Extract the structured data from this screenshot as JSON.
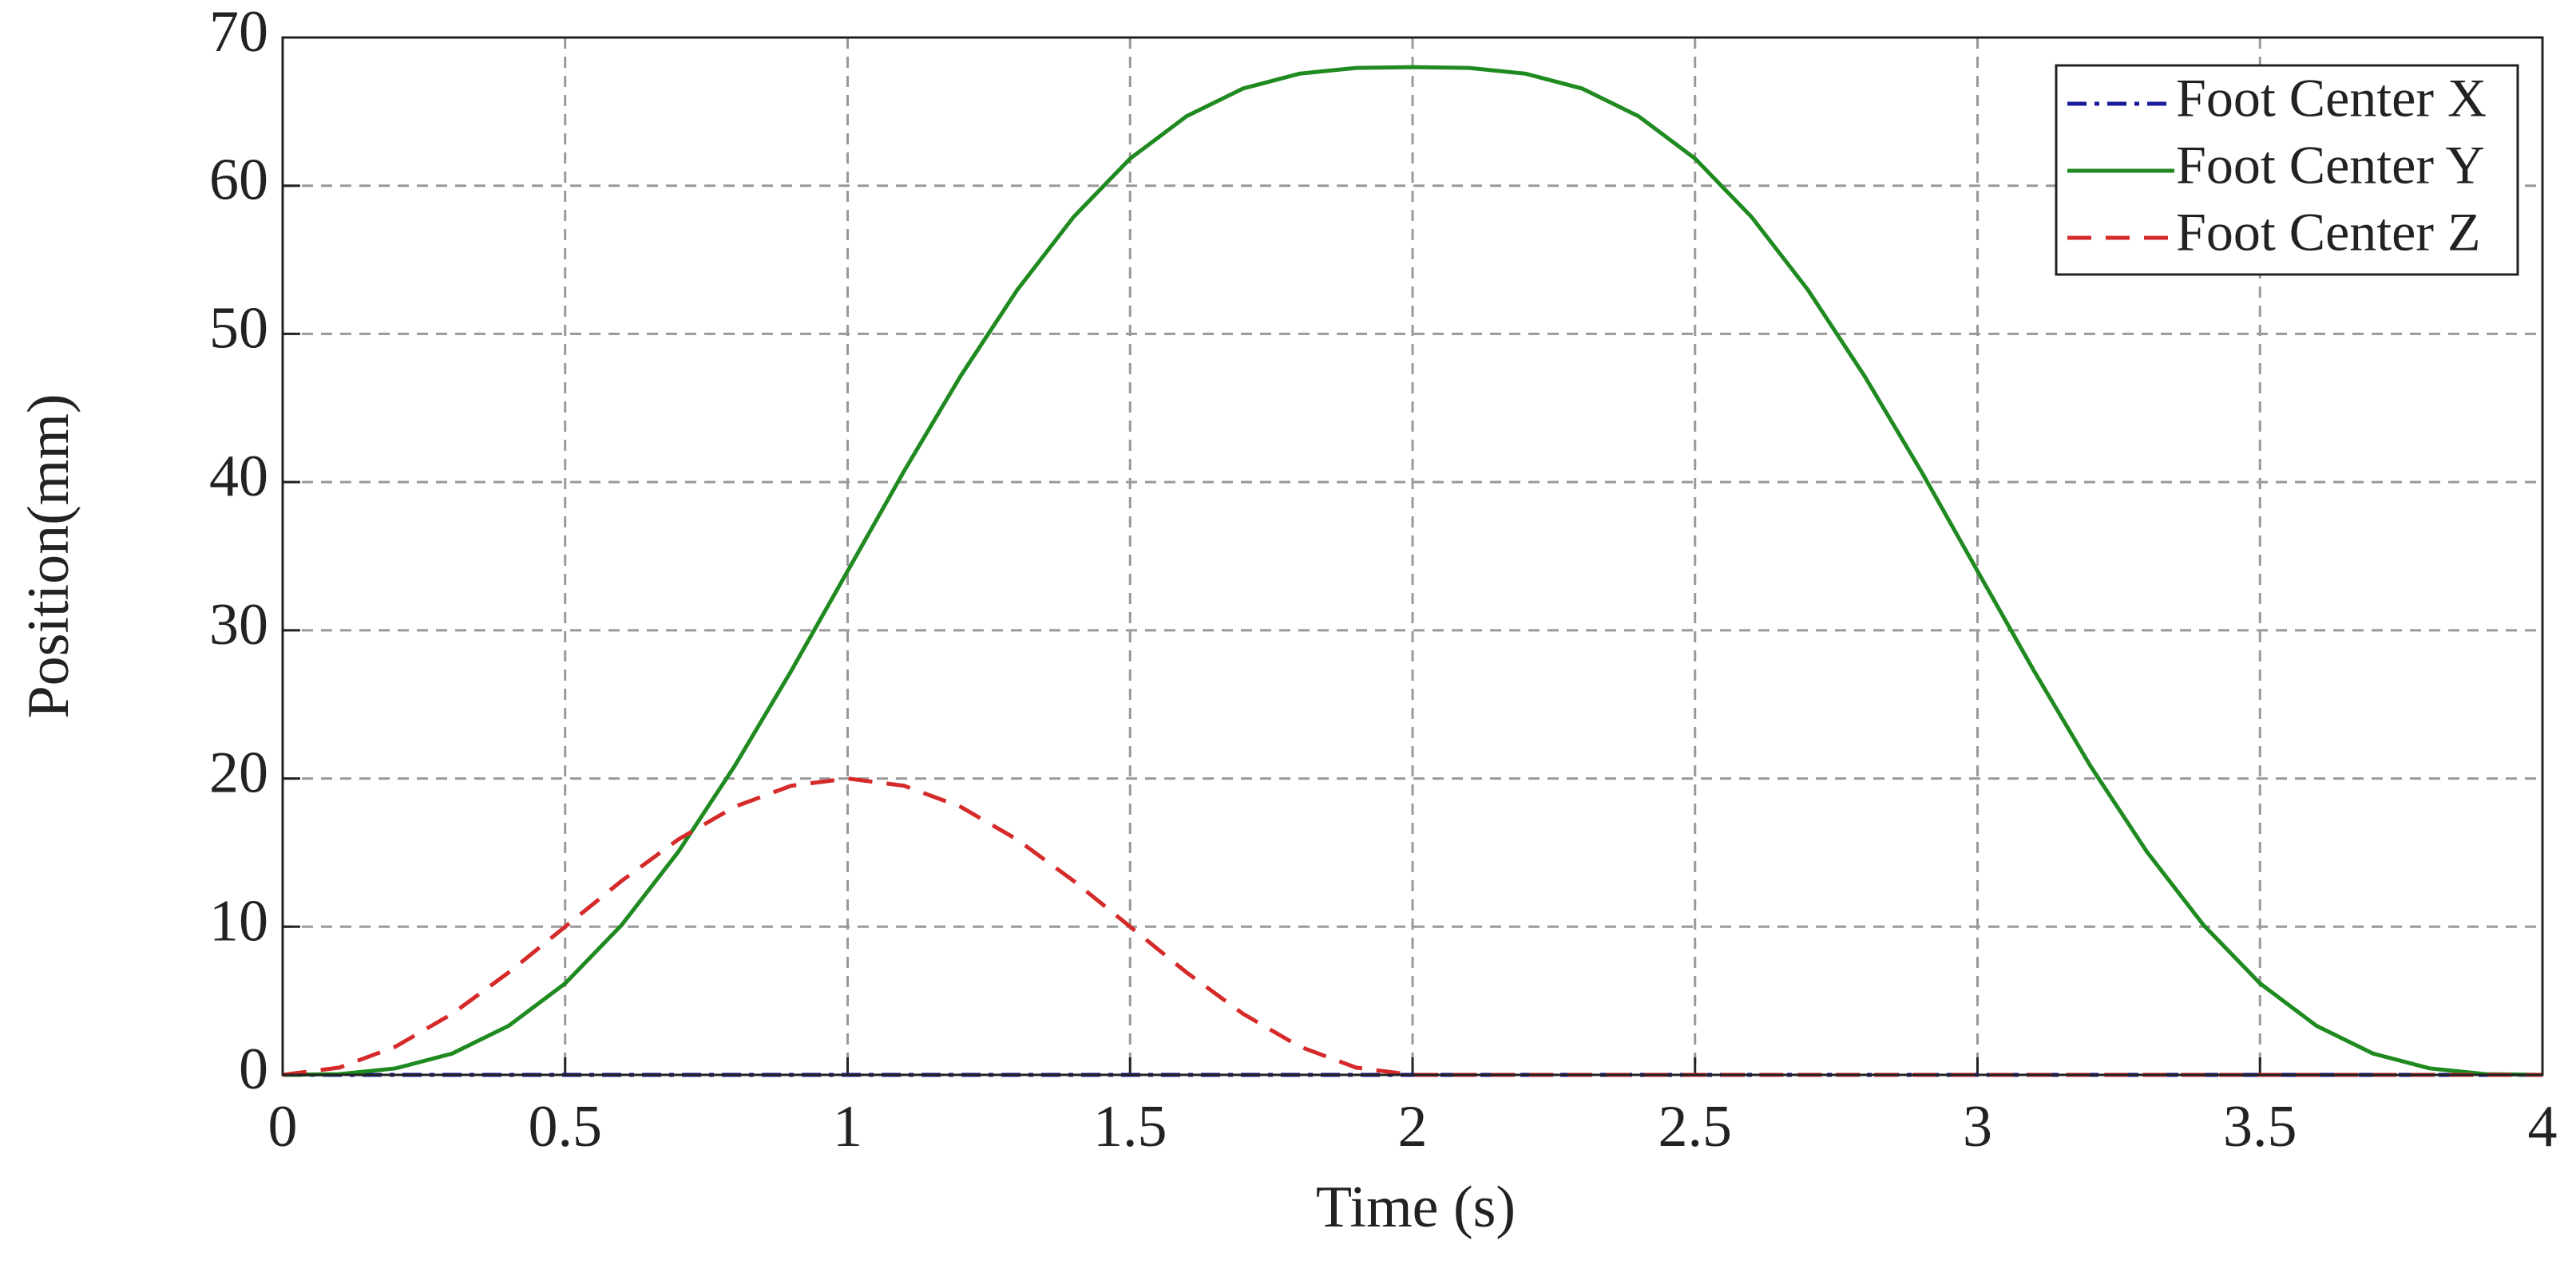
{
  "chart_data": {
    "type": "line",
    "xlabel": "Time (s)",
    "ylabel": "Position(mm)",
    "x": [
      0,
      0.1,
      0.2,
      0.3,
      0.4,
      0.5,
      0.6,
      0.7,
      0.8,
      0.9,
      1,
      1.1,
      1.2,
      1.3,
      1.4,
      1.5,
      1.6,
      1.7,
      1.8,
      1.9,
      2,
      2.1,
      2.2,
      2.3,
      2.4,
      2.5,
      2.6,
      2.7,
      2.8,
      2.9,
      3,
      3.1,
      3.2,
      3.3,
      3.4,
      3.5,
      3.6,
      3.7,
      3.8,
      3.9,
      4
    ],
    "series": [
      {
        "name": "Foot Center X",
        "color": "#1a1a9c",
        "dash": "dashdot",
        "values": [
          0,
          0,
          0,
          0,
          0,
          0,
          0,
          0,
          0,
          0,
          0,
          0,
          0,
          0,
          0,
          0,
          0,
          0,
          0,
          0,
          0,
          0,
          0,
          0,
          0,
          0,
          0,
          0,
          0,
          0,
          0,
          0,
          0,
          0,
          0,
          0,
          0,
          0,
          0,
          0,
          0
        ]
      },
      {
        "name": "Foot Center Y",
        "color": "#1f8a1f",
        "dash": "solid",
        "values": [
          0,
          0.05,
          0.44,
          1.44,
          3.31,
          6.17,
          10.11,
          15.04,
          20.84,
          27.25,
          34,
          40.75,
          47.16,
          52.96,
          57.89,
          61.83,
          64.69,
          66.56,
          67.56,
          67.95,
          68,
          67.95,
          67.56,
          66.56,
          64.69,
          61.83,
          57.89,
          52.96,
          47.16,
          40.75,
          34,
          27.25,
          20.84,
          15.04,
          10.11,
          6.17,
          3.31,
          1.44,
          0.44,
          0.05,
          0
        ]
      },
      {
        "name": "Foot Center Z",
        "color": "#d62a2a",
        "dash": "dashed",
        "values": [
          0,
          0.49,
          1.91,
          4.12,
          6.91,
          10,
          13.09,
          15.88,
          18.09,
          19.51,
          20,
          19.51,
          18.09,
          15.88,
          13.09,
          10,
          6.91,
          4.12,
          1.91,
          0.49,
          0,
          0,
          0,
          0,
          0,
          0,
          0,
          0,
          0,
          0,
          0,
          0,
          0,
          0,
          0,
          0,
          0,
          0,
          0,
          0,
          0
        ]
      }
    ],
    "xlim": [
      0,
      4
    ],
    "xticks": [
      0,
      0.5,
      1,
      1.5,
      2,
      2.5,
      3,
      3.5,
      4
    ],
    "ylim": [
      0,
      70
    ],
    "yticks": [
      0,
      10,
      20,
      30,
      40,
      50,
      60,
      70
    ],
    "grid": true,
    "legend": "upper right"
  }
}
